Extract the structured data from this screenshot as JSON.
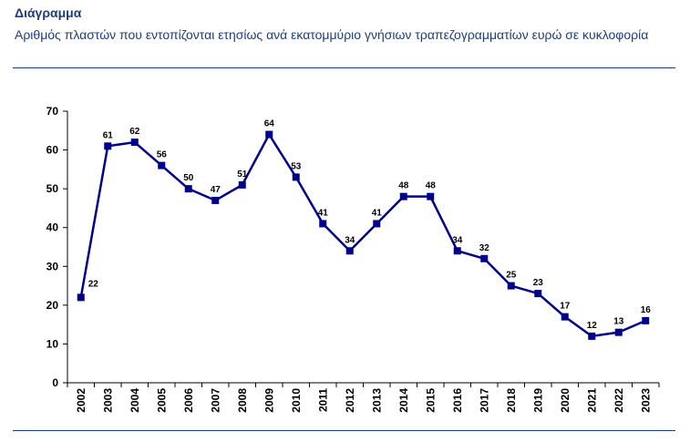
{
  "header": {
    "title": "Διάγραμμα",
    "subtitle": "Αριθμός πλαστών που εντοπίζονται ετησίως ανά εκατομμύριο γνήσιων τραπεζογραμματίων ευρώ σε κυκλοφορία"
  },
  "colors": {
    "series": "#00008b",
    "heading": "#1f3d7a"
  },
  "chart_data": {
    "type": "line",
    "title": "",
    "xlabel": "",
    "ylabel": "",
    "categories": [
      "2002",
      "2003",
      "2004",
      "2005",
      "2006",
      "2007",
      "2008",
      "2009",
      "2010",
      "2011",
      "2012",
      "2013",
      "2014",
      "2015",
      "2016",
      "2017",
      "2018",
      "2019",
      "2020",
      "2021",
      "2022",
      "2023"
    ],
    "series": [
      {
        "values": [
          22,
          61,
          62,
          56,
          50,
          47,
          51,
          64,
          53,
          41,
          34,
          41,
          48,
          48,
          34,
          32,
          25,
          23,
          17,
          12,
          13,
          16
        ]
      }
    ],
    "ylim": [
      0,
      70
    ],
    "yticks": [
      0,
      10,
      20,
      30,
      40,
      50,
      60,
      70
    ],
    "grid": false,
    "legend": "none",
    "marker": "square",
    "data_labels": true
  }
}
